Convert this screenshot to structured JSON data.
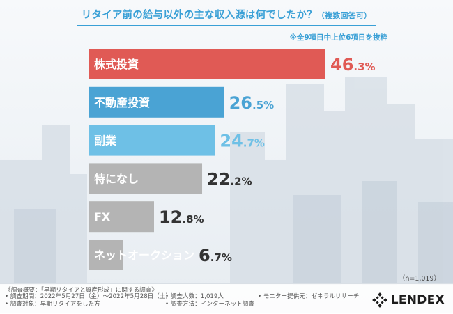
{
  "header": {
    "title": "リタイア前の給与以外の主な収入源は何でしたか？",
    "title_sub": "（複数回答可）",
    "note": "※全9項目中上位6項目を抜粋"
  },
  "chart_data": {
    "type": "bar",
    "orientation": "horizontal",
    "categories": [
      "株式投資",
      "不動産投資",
      "副業",
      "特になし",
      "FX",
      "ネットオークション"
    ],
    "values": [
      46.3,
      26.5,
      24.7,
      22.2,
      12.8,
      6.7
    ],
    "value_labels": [
      {
        "int": "46",
        "dec": ".3%"
      },
      {
        "int": "26",
        "dec": ".5%"
      },
      {
        "int": "24",
        "dec": ".7%"
      },
      {
        "int": "22",
        "dec": ".2%"
      },
      {
        "int": "12",
        "dec": ".8%"
      },
      {
        "int": "6",
        "dec": ".7%"
      }
    ],
    "colors": [
      "#e05a55",
      "#4aa3d4",
      "#6ec0e6",
      "#b4b4b4",
      "#b4b4b4",
      "#b4b4b4"
    ],
    "value_colors": [
      "#e05a55",
      "#4aa3d4",
      "#6ec0e6",
      "#333333",
      "#333333",
      "#333333"
    ],
    "label_colors": [
      "#ffffff",
      "#ffffff",
      "#ffffff",
      "#333333",
      "#333333",
      "#333333"
    ],
    "xlim": [
      0,
      46.3
    ],
    "unit": "%",
    "sample_note": "（n=1,019）"
  },
  "footer": {
    "survey_title": "《調査概要：「早期リタイアと資産形成」に関する調査》",
    "col1": [
      "• 調査期間：2022年5月27日（金）〜2022年5月28日（土）",
      "• 調査対象：早期リタイアをした方"
    ],
    "col2": [
      "• 調査人数：1,019人",
      "• 調査方法：インターネット調査"
    ],
    "col3": [
      "",
      "• モニター提供元：ゼネラルリサーチ"
    ],
    "logo_text": "LENDEX",
    "brand_color": "#1c1c1c"
  }
}
